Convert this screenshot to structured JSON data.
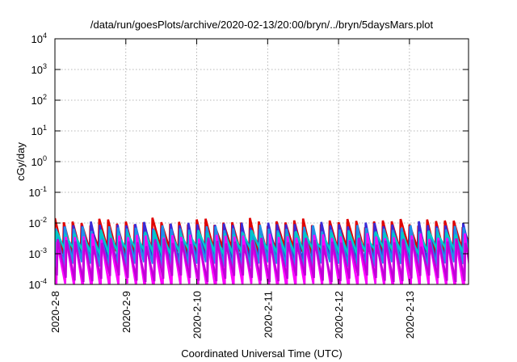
{
  "chart_data": {
    "type": "line",
    "title": "/data/run/goesPlots/archive/2020-02-13/20:00/bryn/../bryn/5daysMars.plot",
    "xlabel": "Coordinated Universal Time (UTC)",
    "ylabel": "cGy/day",
    "y_scale": "log",
    "ylim": [
      0.0001,
      10000
    ],
    "y_ticks": [
      {
        "exp": 4,
        "label_base": "10",
        "label_exp": "4"
      },
      {
        "exp": 3,
        "label_base": "10",
        "label_exp": "3"
      },
      {
        "exp": 2,
        "label_base": "10",
        "label_exp": "2"
      },
      {
        "exp": 1,
        "label_base": "10",
        "label_exp": "1"
      },
      {
        "exp": 0,
        "label_base": "10",
        "label_exp": "0"
      },
      {
        "exp": -1,
        "label_base": "10",
        "label_exp": "-1"
      },
      {
        "exp": -2,
        "label_base": "10",
        "label_exp": "-2"
      },
      {
        "exp": -3,
        "label_base": "10",
        "label_exp": "-3"
      },
      {
        "exp": -4,
        "label_base": "10",
        "label_exp": "-4"
      }
    ],
    "xlim_days": [
      "2020-02-08",
      "2020-02-13T20:00"
    ],
    "x_ticks": [
      {
        "date": "2020-02-08",
        "label": "2020-2-8"
      },
      {
        "date": "2020-02-09",
        "label": "2020-2-9"
      },
      {
        "date": "2020-02-10",
        "label": "2020-2-10"
      },
      {
        "date": "2020-02-11",
        "label": "2020-2-11"
      },
      {
        "date": "2020-02-12",
        "label": "2020-2-12"
      },
      {
        "date": "2020-02-13",
        "label": "2020-2-13"
      }
    ],
    "grid": true,
    "legend": "none",
    "oscillation_period_hours": 3,
    "series": [
      {
        "color": "#e00000",
        "peak": 0.011,
        "trough": 0.0012
      },
      {
        "color": "#3a2ad8",
        "peak": 0.0085,
        "trough": 0.0006
      },
      {
        "color": "#2090e8",
        "peak": 0.0065,
        "trough": 0.0004
      },
      {
        "color": "#00c8c8",
        "peak": 0.0045,
        "trough": 0.0011
      },
      {
        "color": "#ff00ff",
        "peak": 0.0035,
        "trough": 8e-05
      },
      {
        "color": "#c000d8",
        "peak": 0.0025,
        "trough": 0.00015
      }
    ]
  }
}
